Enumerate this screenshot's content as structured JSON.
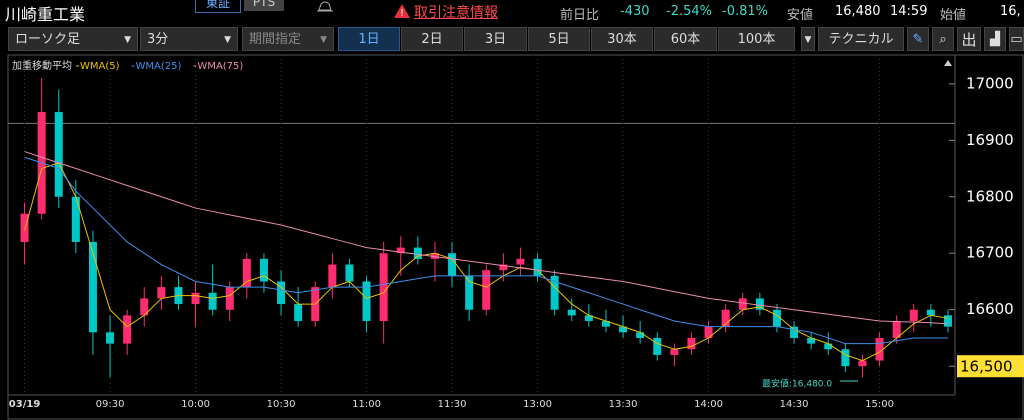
{
  "header": {
    "stock_name": "川崎重工業",
    "market": "東証",
    "pts": "PTS",
    "warning": "取引注意情報",
    "change_label": "前日比",
    "change": "-430",
    "change_pct": "-2.54%",
    "change_pct2": "-0.81%",
    "low_label": "安値",
    "low": "16,480",
    "low_time": "14:59",
    "open_label": "始値",
    "open": "16,"
  },
  "toolbar": {
    "chart_kind": "ローソク足",
    "interval": "3分",
    "period": "期間指定",
    "ranges": [
      "1日",
      "2日",
      "3日",
      "5日",
      "30本",
      "60本",
      "100本"
    ],
    "technical": "テクニカル",
    "print": "出"
  },
  "chart_data": {
    "type": "candlestick",
    "legend_title": "加重移動平均",
    "annotation": "最安値:16,480.0",
    "categories": [
      "03/19",
      null,
      null,
      null,
      null,
      "09:30",
      null,
      null,
      null,
      null,
      "10:00",
      null,
      null,
      null,
      null,
      "10:30",
      null,
      null,
      null,
      null,
      "11:00",
      null,
      null,
      null,
      null,
      "11:30",
      null,
      null,
      null,
      null,
      "13:00",
      null,
      null,
      null,
      null,
      "13:30",
      null,
      null,
      null,
      null,
      "14:00",
      null,
      null,
      null,
      null,
      "14:30",
      null,
      null,
      null,
      null,
      "15:00",
      null,
      null,
      null,
      null
    ],
    "open": [
      16720,
      16770,
      16950,
      16800,
      16720,
      16560,
      16540,
      16590,
      16620,
      16640,
      16610,
      16630,
      16600,
      16640,
      16690,
      16650,
      16610,
      16580,
      16640,
      16680,
      16650,
      16580,
      16700,
      16710,
      16690,
      16700,
      16660,
      16600,
      16670,
      16680,
      16690,
      16660,
      16600,
      16590,
      16580,
      16570,
      16560,
      16550,
      16520,
      16530,
      16550,
      16570,
      16600,
      16620,
      16600,
      16570,
      16550,
      16540,
      16530,
      16500,
      16510,
      16550,
      16580,
      16600,
      16590
    ],
    "high": [
      16790,
      17010,
      16990,
      16830,
      16740,
      16590,
      16600,
      16640,
      16660,
      16660,
      16650,
      16680,
      16650,
      16700,
      16700,
      16670,
      16640,
      16650,
      16700,
      16690,
      16660,
      16720,
      16730,
      16730,
      16720,
      16720,
      16680,
      16680,
      16700,
      16710,
      16700,
      16670,
      16620,
      16610,
      16600,
      16590,
      16580,
      16560,
      16540,
      16560,
      16580,
      16610,
      16630,
      16630,
      16610,
      16580,
      16560,
      16560,
      16540,
      16520,
      16560,
      16590,
      16610,
      16610,
      16600
    ],
    "low": [
      16680,
      16760,
      16780,
      16700,
      16520,
      16480,
      16520,
      16570,
      16600,
      16600,
      16570,
      16590,
      16580,
      16620,
      16630,
      16590,
      16570,
      16570,
      16620,
      16640,
      16560,
      16540,
      16660,
      16680,
      16650,
      16640,
      16580,
      16590,
      16650,
      16660,
      16650,
      16590,
      16580,
      16570,
      16560,
      16550,
      16540,
      16510,
      16500,
      16520,
      16540,
      16560,
      16590,
      16590,
      16560,
      16540,
      16530,
      16520,
      16490,
      16480,
      16500,
      16540,
      16560,
      16570,
      16560
    ],
    "close": [
      16770,
      16950,
      16800,
      16720,
      16560,
      16540,
      16590,
      16620,
      16640,
      16610,
      16630,
      16600,
      16640,
      16690,
      16650,
      16610,
      16580,
      16640,
      16680,
      16650,
      16580,
      16700,
      16710,
      16690,
      16700,
      16660,
      16600,
      16670,
      16680,
      16690,
      16660,
      16600,
      16590,
      16580,
      16570,
      16560,
      16550,
      16520,
      16530,
      16550,
      16570,
      16600,
      16620,
      16600,
      16570,
      16550,
      16540,
      16530,
      16500,
      16510,
      16550,
      16580,
      16600,
      16590,
      16570
    ],
    "up_color": "#ff2d6f",
    "down_color": "#00c8c8",
    "series": [
      {
        "name": "WMA(5)",
        "color": "#e8c400",
        "values": [
          16740,
          16850,
          16860,
          16800,
          16700,
          16600,
          16570,
          16590,
          16620,
          16625,
          16625,
          16620,
          16625,
          16650,
          16660,
          16640,
          16610,
          16610,
          16640,
          16650,
          16620,
          16630,
          16670,
          16695,
          16700,
          16690,
          16650,
          16640,
          16660,
          16675,
          16670,
          16640,
          16610,
          16590,
          16580,
          16570,
          16560,
          16540,
          16530,
          16535,
          16550,
          16575,
          16600,
          16605,
          16590,
          16565,
          16550,
          16540,
          16520,
          16510,
          16525,
          16550,
          16575,
          16590,
          16585
        ]
      },
      {
        "name": "WMA(25)",
        "color": "#3f8fe8",
        "values": [
          16870,
          16860,
          16850,
          16810,
          16780,
          16750,
          16720,
          16700,
          16680,
          16665,
          16650,
          16645,
          16640,
          16640,
          16640,
          16635,
          16630,
          16635,
          16640,
          16640,
          16640,
          16645,
          16650,
          16655,
          16660,
          16660,
          16660,
          16660,
          16660,
          16660,
          16660,
          16650,
          16640,
          16630,
          16620,
          16610,
          16600,
          16590,
          16580,
          16575,
          16570,
          16570,
          16570,
          16570,
          16570,
          16565,
          16560,
          16550,
          16540,
          16540,
          16540,
          16545,
          16550,
          16550,
          16550
        ]
      },
      {
        "name": "WMA(75)",
        "color": "#e98bb0",
        "values": [
          16880,
          16870,
          16860,
          16850,
          16840,
          16830,
          16820,
          16810,
          16800,
          16790,
          16780,
          16774,
          16768,
          16762,
          16756,
          16750,
          16742,
          16734,
          16726,
          16718,
          16710,
          16706,
          16702,
          16698,
          16694,
          16690,
          16686,
          16682,
          16678,
          16674,
          16670,
          16666,
          16662,
          16658,
          16654,
          16650,
          16644,
          16638,
          16632,
          16626,
          16620,
          16616,
          16612,
          16608,
          16604,
          16600,
          16596,
          16592,
          16588,
          16584,
          16580,
          16579,
          16578,
          16577,
          16575
        ]
      }
    ],
    "reference_line": 16930,
    "ylim": [
      16449,
      17051
    ],
    "yticks": [
      {
        "value": 16500,
        "label": "16,500"
      },
      16600,
      16700,
      16800,
      16900,
      17000
    ]
  }
}
